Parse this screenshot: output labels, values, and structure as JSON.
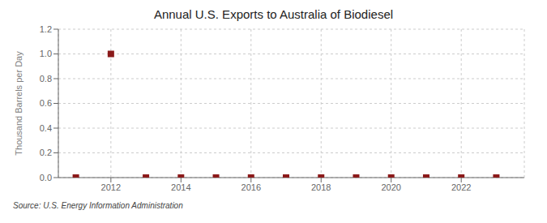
{
  "chart_data": {
    "type": "scatter",
    "title": "Annual U.S. Exports to Australia of Biodiesel",
    "ylabel": "Thousand Barrels per Day",
    "annotations": [
      "Source: U.S. Energy Information Administration"
    ],
    "x": [
      2011,
      2012,
      2013,
      2014,
      2015,
      2016,
      2017,
      2018,
      2019,
      2020,
      2021,
      2022,
      2023
    ],
    "values": [
      0.0,
      1.0,
      0.0,
      0.0,
      0.0,
      0.0,
      0.0,
      0.0,
      0.0,
      0.0,
      0.0,
      0.0,
      0.0
    ],
    "color": "#8b1a1a",
    "marker": "square",
    "xlim": [
      2010.5,
      2023.8
    ],
    "xticks": [
      2012,
      2014,
      2016,
      2018,
      2020,
      2022
    ],
    "ylim": [
      0.0,
      1.2
    ],
    "yticks": [
      {
        "value": 0,
        "label": "0.0"
      },
      0.2,
      0.4,
      0.6,
      0.8,
      {
        "value": 1,
        "label": "1.0"
      },
      1.2
    ],
    "grid": true
  }
}
